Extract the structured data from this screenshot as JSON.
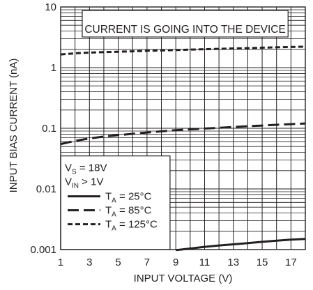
{
  "chart_data": {
    "type": "line",
    "xlabel": "INPUT VOLTAGE (V)",
    "ylabel": "INPUT BIAS CURRENT (nA)",
    "xlim": [
      1,
      18
    ],
    "ylim": [
      0.001,
      10
    ],
    "yscale": "log",
    "grid": true,
    "x_ticks": [
      "1",
      "3",
      "5",
      "7",
      "9",
      "11",
      "13",
      "15",
      "17"
    ],
    "y_ticks": [
      "10",
      "1",
      "0.1",
      "0.01",
      "0.001"
    ],
    "annotation": "CURRENT IS GOING INTO THE DEVICE",
    "conditions": {
      "vs": {
        "base": "V",
        "sub": "S",
        "rest": " = 18V"
      },
      "vin": {
        "base": "V",
        "sub": "IN",
        "rest": " > 1V"
      }
    },
    "legend_position": "bottom-left",
    "series": [
      {
        "name": {
          "base": "T",
          "sub": "A",
          "rest": " = 25°C"
        },
        "style": "solid",
        "x": [
          9,
          10,
          11,
          12,
          13,
          14,
          15,
          16,
          17,
          18
        ],
        "y": [
          0.00098,
          0.00104,
          0.00111,
          0.00117,
          0.00122,
          0.00128,
          0.00134,
          0.0014,
          0.00146,
          0.0015
        ]
      },
      {
        "name": {
          "base": "T",
          "sub": "A",
          "rest": " = 85°C"
        },
        "style": "long-dash",
        "x": [
          1,
          2,
          3,
          4,
          5,
          6,
          7,
          8,
          9,
          10,
          11,
          12,
          13,
          14,
          15,
          16,
          17,
          18
        ],
        "y": [
          0.055,
          0.062,
          0.068,
          0.073,
          0.077,
          0.081,
          0.085,
          0.089,
          0.093,
          0.096,
          0.099,
          0.102,
          0.105,
          0.108,
          0.111,
          0.114,
          0.117,
          0.12
        ]
      },
      {
        "name": {
          "base": "T",
          "sub": "A",
          "rest": " = 125°C"
        },
        "style": "short-dash",
        "x": [
          1,
          2,
          3,
          4,
          5,
          6,
          7,
          8,
          9,
          10,
          11,
          12,
          13,
          14,
          15,
          16,
          17,
          18
        ],
        "y": [
          1.65,
          1.72,
          1.77,
          1.8,
          1.83,
          1.86,
          1.89,
          1.92,
          1.95,
          1.98,
          2.01,
          2.04,
          2.07,
          2.1,
          2.13,
          2.16,
          2.19,
          2.22
        ]
      }
    ]
  }
}
